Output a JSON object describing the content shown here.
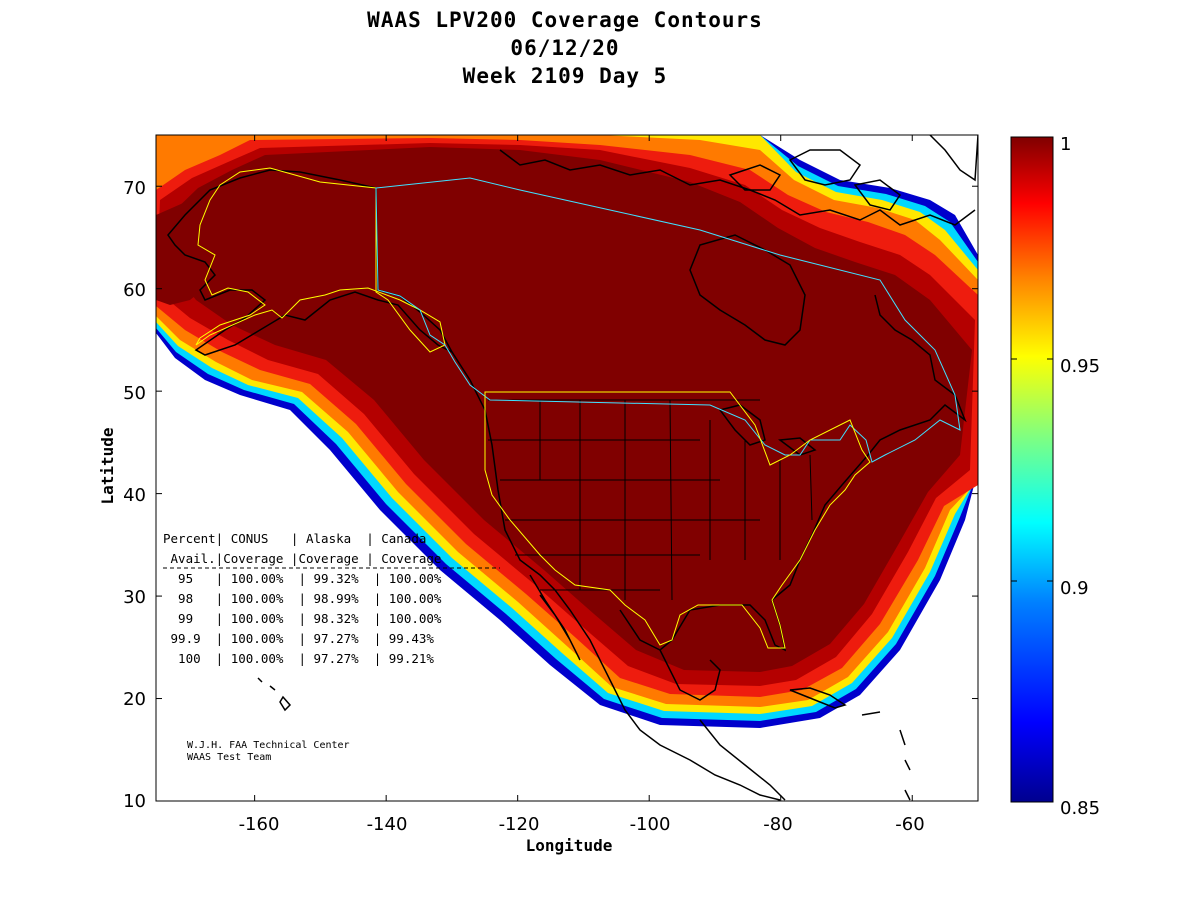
{
  "title": {
    "line1": "WAAS LPV200 Coverage Contours",
    "line2": "06/12/20",
    "line3": "Week 2109 Day 5"
  },
  "chart_data": {
    "type": "heatmap",
    "title": "WAAS LPV200 Coverage Contours",
    "xlabel": "Longitude",
    "ylabel": "Latitude",
    "xlim": [
      -175,
      -50
    ],
    "ylim": [
      10,
      75
    ],
    "x_ticks": [
      "-160",
      "-140",
      "-120",
      "-100",
      "-80",
      "-60"
    ],
    "y_ticks": [
      "10",
      "20",
      "30",
      "40",
      "50",
      "60",
      "70"
    ],
    "colorbar": {
      "range": [
        0.85,
        1
      ],
      "ticks": [
        "1",
        "0.95",
        "0.9",
        "0.85"
      ],
      "colormap": "jet",
      "colors": [
        "#00008f",
        "#0000ff",
        "#0080ff",
        "#00ffff",
        "#80ff80",
        "#ffff00",
        "#ff8000",
        "#ff0000",
        "#800000"
      ]
    },
    "grid": false,
    "legend": "none"
  },
  "table": {
    "header1": "Percent| CONUS   | Alaska  | Canada",
    "header2": " Avail.|Coverage |Coverage | Coverage",
    "rows": [
      "  95   | 100.00%  | 99.32%  | 100.00%",
      "  98   | 100.00%  | 98.99%  | 100.00%",
      "  99   | 100.00%  | 98.32%  | 100.00%",
      " 99.9  | 100.00%  | 97.27%  | 99.43%",
      "  100  | 100.00%  | 97.27%  | 99.21%"
    ],
    "values": [
      {
        "percent": 95,
        "conus": "100.00%",
        "alaska": "99.32%",
        "canada": "100.00%"
      },
      {
        "percent": 98,
        "conus": "100.00%",
        "alaska": "98.99%",
        "canada": "100.00%"
      },
      {
        "percent": 99,
        "conus": "100.00%",
        "alaska": "98.32%",
        "canada": "100.00%"
      },
      {
        "percent": 99.9,
        "conus": "100.00%",
        "alaska": "97.27%",
        "canada": "99.43%"
      },
      {
        "percent": 100,
        "conus": "100.00%",
        "alaska": "97.27%",
        "canada": "99.21%"
      }
    ]
  },
  "credit": {
    "line1": "W.J.H. FAA Technical Center",
    "line2": "WAAS Test Team"
  }
}
